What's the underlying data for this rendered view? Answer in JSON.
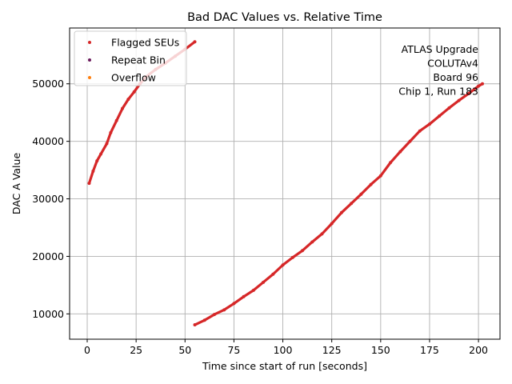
{
  "chart_data": {
    "type": "scatter",
    "title": "Bad DAC Values vs. Relative Time",
    "xlabel": "Time since start of run [seconds]",
    "ylabel": "DAC A Value",
    "xlim": [
      -9,
      211
    ],
    "ylim": [
      5600,
      59700
    ],
    "xticks": [
      "0",
      "25",
      "50",
      "75",
      "100",
      "125",
      "150",
      "175",
      "200"
    ],
    "yticks": [
      "10000",
      "20000",
      "30000",
      "40000",
      "50000"
    ],
    "grid": true,
    "legend_position": "top-left",
    "annotation_position": "top-right",
    "annotation": [
      "ATLAS Upgrade",
      "COLUTAv4",
      "Board 96",
      "Chip 1, Run 183"
    ],
    "series": [
      {
        "name": "Flagged SEUs",
        "color": "#d62728",
        "segments": [
          {
            "x": [
              1,
              3,
              5,
              7,
              10,
              12,
              15,
              18,
              21,
              24,
              27,
              30,
              35,
              40,
              45,
              50,
              55
            ],
            "y": [
              32700,
              34800,
              36600,
              37800,
              39600,
              41500,
              43600,
              45700,
              47300,
              48600,
              50000,
              51200,
              52500,
              53600,
              54800,
              56000,
              57300
            ]
          },
          {
            "x": [
              55,
              60,
              65,
              70,
              75,
              80,
              85,
              90,
              95,
              100,
              105,
              110,
              115,
              120,
              125,
              130,
              135,
              140,
              145,
              150,
              155,
              160,
              165,
              170,
              175,
              180,
              185,
              190,
              195,
              200,
              202
            ],
            "y": [
              8100,
              8900,
              9900,
              10700,
              11800,
              13000,
              14100,
              15500,
              16900,
              18500,
              19800,
              21000,
              22500,
              23900,
              25700,
              27600,
              29200,
              30800,
              32500,
              34000,
              36300,
              38200,
              40000,
              41800,
              43000,
              44400,
              45800,
              47100,
              48300,
              49600,
              50000
            ]
          }
        ]
      },
      {
        "name": "Repeat Bin",
        "color": "#6b1a5c",
        "segments": []
      },
      {
        "name": "Overflow",
        "color": "#ff7f0e",
        "segments": []
      }
    ]
  }
}
